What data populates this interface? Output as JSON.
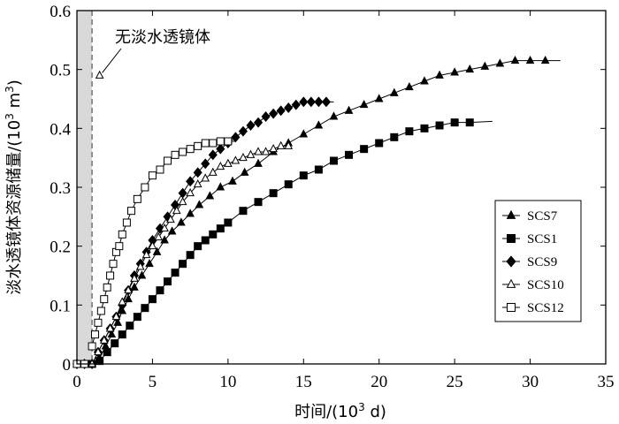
{
  "chart_data": {
    "type": "line",
    "title": "",
    "xlabel": {
      "prefix": "时间/(10",
      "sup": "3",
      "suffix": " d)"
    },
    "ylabel": {
      "prefix": "淡水透镜体资源储量/(10",
      "sup": "3",
      "mid": " m",
      "sup2": "3",
      "suffix": ")"
    },
    "xlim": [
      0,
      35
    ],
    "ylim": [
      0,
      0.6
    ],
    "xticks": [
      "0",
      "5",
      "10",
      "15",
      "20",
      "25",
      "30",
      "35"
    ],
    "yticks": [
      "0",
      "0.1",
      "0.2",
      "0.3",
      "0.4",
      "0.5",
      "0.6"
    ],
    "shaded_region": {
      "x_from": 0,
      "x_to": 1.0
    },
    "annotation": {
      "text": "无淡水透镜体",
      "point": [
        1.5,
        0.49
      ]
    },
    "legend_position": "right-middle",
    "series": [
      {
        "name": "SCS7",
        "marker": "triangle-filled",
        "x": [
          0,
          0.5,
          1.0,
          1.5,
          1.9,
          2.3,
          2.7,
          3.0,
          3.4,
          3.8,
          4.3,
          4.8,
          5.3,
          5.8,
          6.3,
          6.9,
          7.5,
          8.1,
          8.8,
          9.5,
          10.3,
          11.1,
          12.0,
          13.0,
          14.0,
          15.0,
          16.0,
          17.0,
          18.0,
          19.0,
          20.0,
          21.0,
          22.0,
          23.0,
          24.0,
          25.0,
          26.0,
          27.0,
          28.0,
          29.0,
          30.0,
          31.0
        ],
        "y": [
          0,
          0,
          0,
          0.01,
          0.03,
          0.05,
          0.07,
          0.09,
          0.11,
          0.13,
          0.15,
          0.17,
          0.19,
          0.21,
          0.225,
          0.24,
          0.255,
          0.27,
          0.285,
          0.3,
          0.31,
          0.325,
          0.34,
          0.36,
          0.375,
          0.39,
          0.405,
          0.42,
          0.43,
          0.44,
          0.45,
          0.46,
          0.47,
          0.48,
          0.49,
          0.495,
          0.5,
          0.505,
          0.51,
          0.515,
          0.515,
          0.515
        ],
        "line_x": [
          1.0,
          32.0
        ],
        "line_y_end": 0.515
      },
      {
        "name": "SCS1",
        "marker": "square-filled",
        "x": [
          0,
          0.5,
          1.0,
          1.5,
          2.0,
          2.5,
          3.0,
          3.5,
          4.0,
          4.5,
          5.0,
          5.5,
          6.0,
          6.5,
          7.0,
          7.5,
          8.0,
          8.5,
          9.0,
          9.5,
          10.0,
          11.0,
          12.0,
          13.0,
          14.0,
          15.0,
          16.0,
          17.0,
          18.0,
          19.0,
          20.0,
          21.0,
          22.0,
          23.0,
          24.0,
          25.0,
          26.0
        ],
        "y": [
          0,
          0,
          0,
          0.005,
          0.02,
          0.035,
          0.05,
          0.065,
          0.08,
          0.095,
          0.11,
          0.125,
          0.14,
          0.155,
          0.17,
          0.185,
          0.2,
          0.21,
          0.22,
          0.23,
          0.24,
          0.26,
          0.275,
          0.29,
          0.305,
          0.32,
          0.33,
          0.345,
          0.355,
          0.365,
          0.375,
          0.385,
          0.395,
          0.4,
          0.405,
          0.41,
          0.41
        ],
        "line_x": [
          1.0,
          27.5
        ],
        "line_y_end": 0.412
      },
      {
        "name": "SCS9",
        "marker": "diamond-filled",
        "x": [
          0,
          0.5,
          1.0,
          1.4,
          1.8,
          2.2,
          2.6,
          3.0,
          3.4,
          3.8,
          4.2,
          4.6,
          5.0,
          5.5,
          6.0,
          6.5,
          7.0,
          7.5,
          8.0,
          8.5,
          9.0,
          9.5,
          10.0,
          10.5,
          11.0,
          11.5,
          12.0,
          12.5,
          13.0,
          13.5,
          14.0,
          14.5,
          15.0,
          15.5,
          16.0,
          16.5
        ],
        "y": [
          0,
          0,
          0,
          0.02,
          0.04,
          0.06,
          0.08,
          0.1,
          0.125,
          0.15,
          0.17,
          0.19,
          0.21,
          0.23,
          0.25,
          0.27,
          0.29,
          0.31,
          0.325,
          0.34,
          0.355,
          0.365,
          0.375,
          0.385,
          0.395,
          0.405,
          0.41,
          0.42,
          0.425,
          0.43,
          0.435,
          0.44,
          0.445,
          0.445,
          0.445,
          0.445
        ],
        "line_x": [
          1.0,
          17.0
        ],
        "line_y_end": 0.445
      },
      {
        "name": "SCS10",
        "marker": "triangle-open",
        "x": [
          0,
          0.5,
          1.0,
          1.4,
          1.8,
          2.2,
          2.6,
          3.0,
          3.4,
          3.8,
          4.2,
          4.6,
          5.0,
          5.4,
          5.8,
          6.2,
          6.6,
          7.0,
          7.5,
          8.0,
          8.5,
          9.0,
          9.5,
          10.0,
          10.5,
          11.0,
          11.5,
          12.0,
          12.5,
          13.0,
          13.5,
          14.0
        ],
        "y": [
          0,
          0,
          0,
          0.02,
          0.04,
          0.06,
          0.08,
          0.105,
          0.125,
          0.145,
          0.165,
          0.185,
          0.2,
          0.215,
          0.23,
          0.245,
          0.26,
          0.275,
          0.29,
          0.305,
          0.315,
          0.325,
          0.335,
          0.34,
          0.345,
          0.35,
          0.355,
          0.36,
          0.36,
          0.365,
          0.37,
          0.37
        ],
        "line_x": [
          1.0,
          14.0
        ],
        "line_y_end": 0.37
      },
      {
        "name": "SCS12",
        "marker": "square-open",
        "x": [
          0,
          0.5,
          1.0,
          1.2,
          1.4,
          1.6,
          1.8,
          2.0,
          2.2,
          2.4,
          2.6,
          2.8,
          3.0,
          3.3,
          3.6,
          4.0,
          4.5,
          5.0,
          5.5,
          6.0,
          6.5,
          7.0,
          7.5,
          8.0,
          8.5,
          9.0,
          9.5,
          10.0
        ],
        "y": [
          0,
          0,
          0.03,
          0.05,
          0.07,
          0.09,
          0.11,
          0.13,
          0.15,
          0.17,
          0.19,
          0.2,
          0.22,
          0.24,
          0.26,
          0.28,
          0.3,
          0.32,
          0.33,
          0.345,
          0.355,
          0.36,
          0.365,
          0.37,
          0.375,
          0.375,
          0.378,
          0.378
        ],
        "line_x": [
          1.0,
          10.5
        ],
        "line_y_end": 0.378
      }
    ]
  }
}
